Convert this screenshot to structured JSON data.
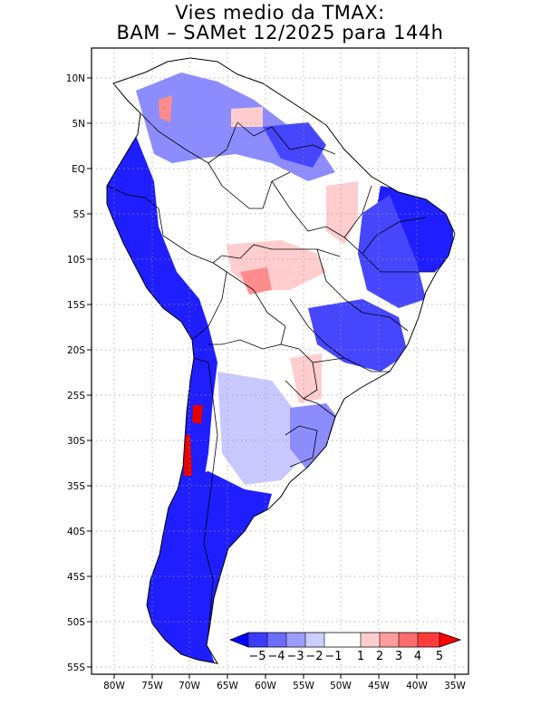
{
  "title": {
    "line1": "Vies medio da TMAX:",
    "line2": "BAM – SAMet 12/2025  para 144h"
  },
  "map": {
    "region": "South America",
    "variable": "Mean bias of maximum temperature (TMAX)",
    "lat_ticks": [
      "10N",
      "5N",
      "EQ",
      "5S",
      "10S",
      "15S",
      "20S",
      "25S",
      "30S",
      "35S",
      "40S",
      "45S",
      "50S",
      "55S"
    ],
    "lon_ticks": [
      "80W",
      "75W",
      "70W",
      "65W",
      "60W",
      "55W",
      "50W",
      "45W",
      "40W",
      "35W"
    ],
    "lon_range": [
      -83,
      -34
    ],
    "lat_range": [
      -56,
      13
    ]
  },
  "colorbar": {
    "labels": [
      "−5",
      "−4",
      "−3",
      "−2",
      "−1",
      "1",
      "2",
      "3",
      "4",
      "5"
    ],
    "bin_colors": [
      "#0000ff",
      "#3c3cff",
      "#6c6cff",
      "#9c9cff",
      "#cdcdff",
      "#ffffff",
      "#ffcdcd",
      "#ff9c9c",
      "#ff6c6c",
      "#ff3c3c",
      "#ff0000"
    ]
  },
  "colors": {
    "strong_cold": "#1e1eff",
    "cold": "#4646ff",
    "mild_cold": "#8c8cff",
    "light_cold": "#c8c8ff",
    "neutral": "#ffffff",
    "light_warm": "#ffcdcd",
    "warm": "#ff8c8c",
    "hot": "#e60000"
  }
}
